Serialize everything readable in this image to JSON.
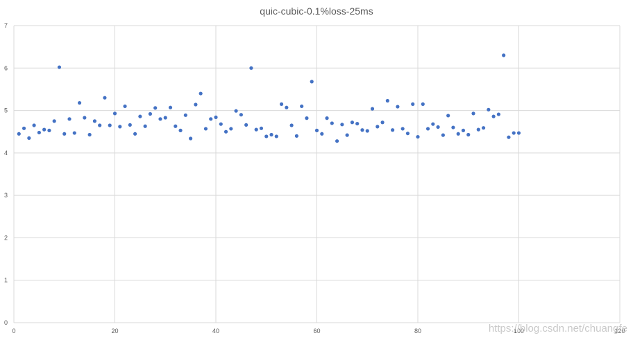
{
  "chart_data": {
    "type": "scatter",
    "title": "quic-cubic-0.1%loss-25ms",
    "xlabel": "",
    "ylabel": "",
    "xlim": [
      0,
      120
    ],
    "ylim": [
      0,
      7
    ],
    "x_ticks": [
      0,
      20,
      40,
      60,
      80,
      100,
      120
    ],
    "y_ticks": [
      0,
      1,
      2,
      3,
      4,
      5,
      6,
      7
    ],
    "grid": true,
    "legend": "none",
    "marker_color": "#4472c4",
    "series": [
      {
        "x": [
          1,
          2,
          3,
          4,
          5,
          6,
          7,
          8,
          9,
          10,
          11,
          12,
          13,
          14,
          15,
          16,
          17,
          18,
          19,
          20,
          21,
          22,
          23,
          24,
          25,
          26,
          27,
          28,
          29,
          30,
          31,
          32,
          33,
          34,
          35,
          36,
          37,
          38,
          39,
          40,
          41,
          42,
          43,
          44,
          45,
          46,
          47,
          48,
          49,
          50,
          51,
          52,
          53,
          54,
          55,
          56,
          57,
          58,
          59,
          60,
          61,
          62,
          63,
          64,
          65,
          66,
          67,
          68,
          69,
          70,
          71,
          72,
          73,
          74,
          75,
          76,
          77,
          78,
          79,
          80,
          81,
          82,
          83,
          84,
          85,
          86,
          87,
          88,
          89,
          90,
          91,
          92,
          93,
          94,
          95,
          96,
          97,
          98,
          99,
          100
        ],
        "y": [
          4.45,
          4.58,
          4.35,
          4.65,
          4.48,
          4.55,
          4.53,
          4.75,
          6.02,
          4.45,
          4.8,
          4.47,
          5.18,
          4.83,
          4.43,
          4.75,
          4.65,
          5.3,
          4.65,
          4.93,
          4.62,
          5.1,
          4.66,
          4.45,
          4.86,
          4.63,
          4.92,
          5.06,
          4.8,
          4.83,
          5.07,
          4.63,
          4.53,
          4.89,
          4.34,
          5.14,
          5.4,
          4.57,
          4.8,
          4.84,
          4.68,
          4.5,
          4.57,
          4.99,
          4.9,
          4.66,
          6.0,
          4.55,
          4.58,
          4.39,
          4.43,
          4.39,
          5.15,
          5.07,
          4.65,
          4.4,
          5.1,
          4.82,
          5.68,
          4.53,
          4.45,
          4.82,
          4.7,
          4.28,
          4.67,
          4.42,
          4.72,
          4.69,
          4.54,
          4.52,
          5.04,
          4.62,
          4.72,
          5.23,
          4.54,
          5.09,
          4.57,
          4.46,
          5.15,
          4.38,
          5.15,
          4.57,
          4.68,
          4.61,
          4.42,
          4.88,
          4.6,
          4.45,
          4.53,
          4.43,
          4.93,
          4.55,
          4.59,
          5.02,
          4.86,
          4.91,
          6.3,
          4.37,
          4.47,
          4.47
        ]
      }
    ]
  },
  "watermark": "https://blog.csdn.net/chuangfe"
}
